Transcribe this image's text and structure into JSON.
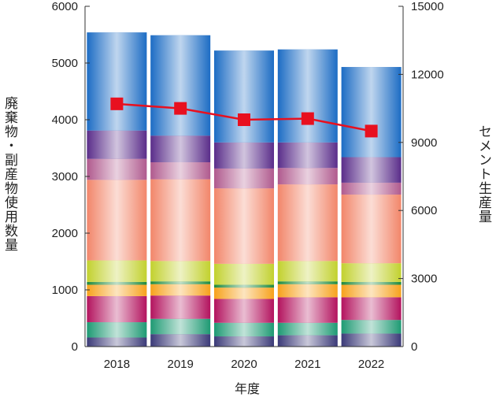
{
  "chart_data": {
    "type": "bar",
    "stacked": true,
    "title": "",
    "xlabel": "年度",
    "ylabel": "廃棄物・副産物使用数量",
    "y2label": "セメント生産量",
    "categories": [
      "2018",
      "2019",
      "2020",
      "2021",
      "2022"
    ],
    "ylim": [
      0,
      6000
    ],
    "yticks": [
      0,
      1000,
      2000,
      3000,
      4000,
      5000,
      6000
    ],
    "y2lim": [
      0,
      15000
    ],
    "y2ticks": [
      0,
      3000,
      6000,
      9000,
      12000,
      15000
    ],
    "grid": false,
    "legend": "none",
    "series": [
      {
        "color": "#3b3a78",
        "values": [
          160,
          220,
          180,
          200,
          230
        ]
      },
      {
        "color": "#1e9a73",
        "values": [
          270,
          270,
          240,
          220,
          240
        ]
      },
      {
        "color": "#b3135e",
        "values": [
          460,
          410,
          420,
          450,
          400
        ]
      },
      {
        "color": "#f7a21c",
        "values": [
          200,
          200,
          200,
          230,
          220
        ]
      },
      {
        "color": "#1f8a3c",
        "values": [
          50,
          50,
          50,
          50,
          50
        ]
      },
      {
        "color": "#c2d12e",
        "values": [
          380,
          360,
          370,
          360,
          330
        ]
      },
      {
        "color": "#f2866a",
        "values": [
          1420,
          1440,
          1330,
          1350,
          1210
        ]
      },
      {
        "color": "#b05a8e",
        "values": [
          370,
          300,
          350,
          290,
          210
        ]
      },
      {
        "color": "#5a2d8a",
        "values": [
          500,
          470,
          460,
          450,
          450
        ]
      },
      {
        "color": "#1c6cc4",
        "values": [
          1730,
          1770,
          1620,
          1640,
          1590
        ]
      }
    ],
    "line": {
      "axis": "right",
      "color": "#e8101f",
      "values": [
        10700,
        10500,
        10000,
        10050,
        9500
      ]
    }
  }
}
